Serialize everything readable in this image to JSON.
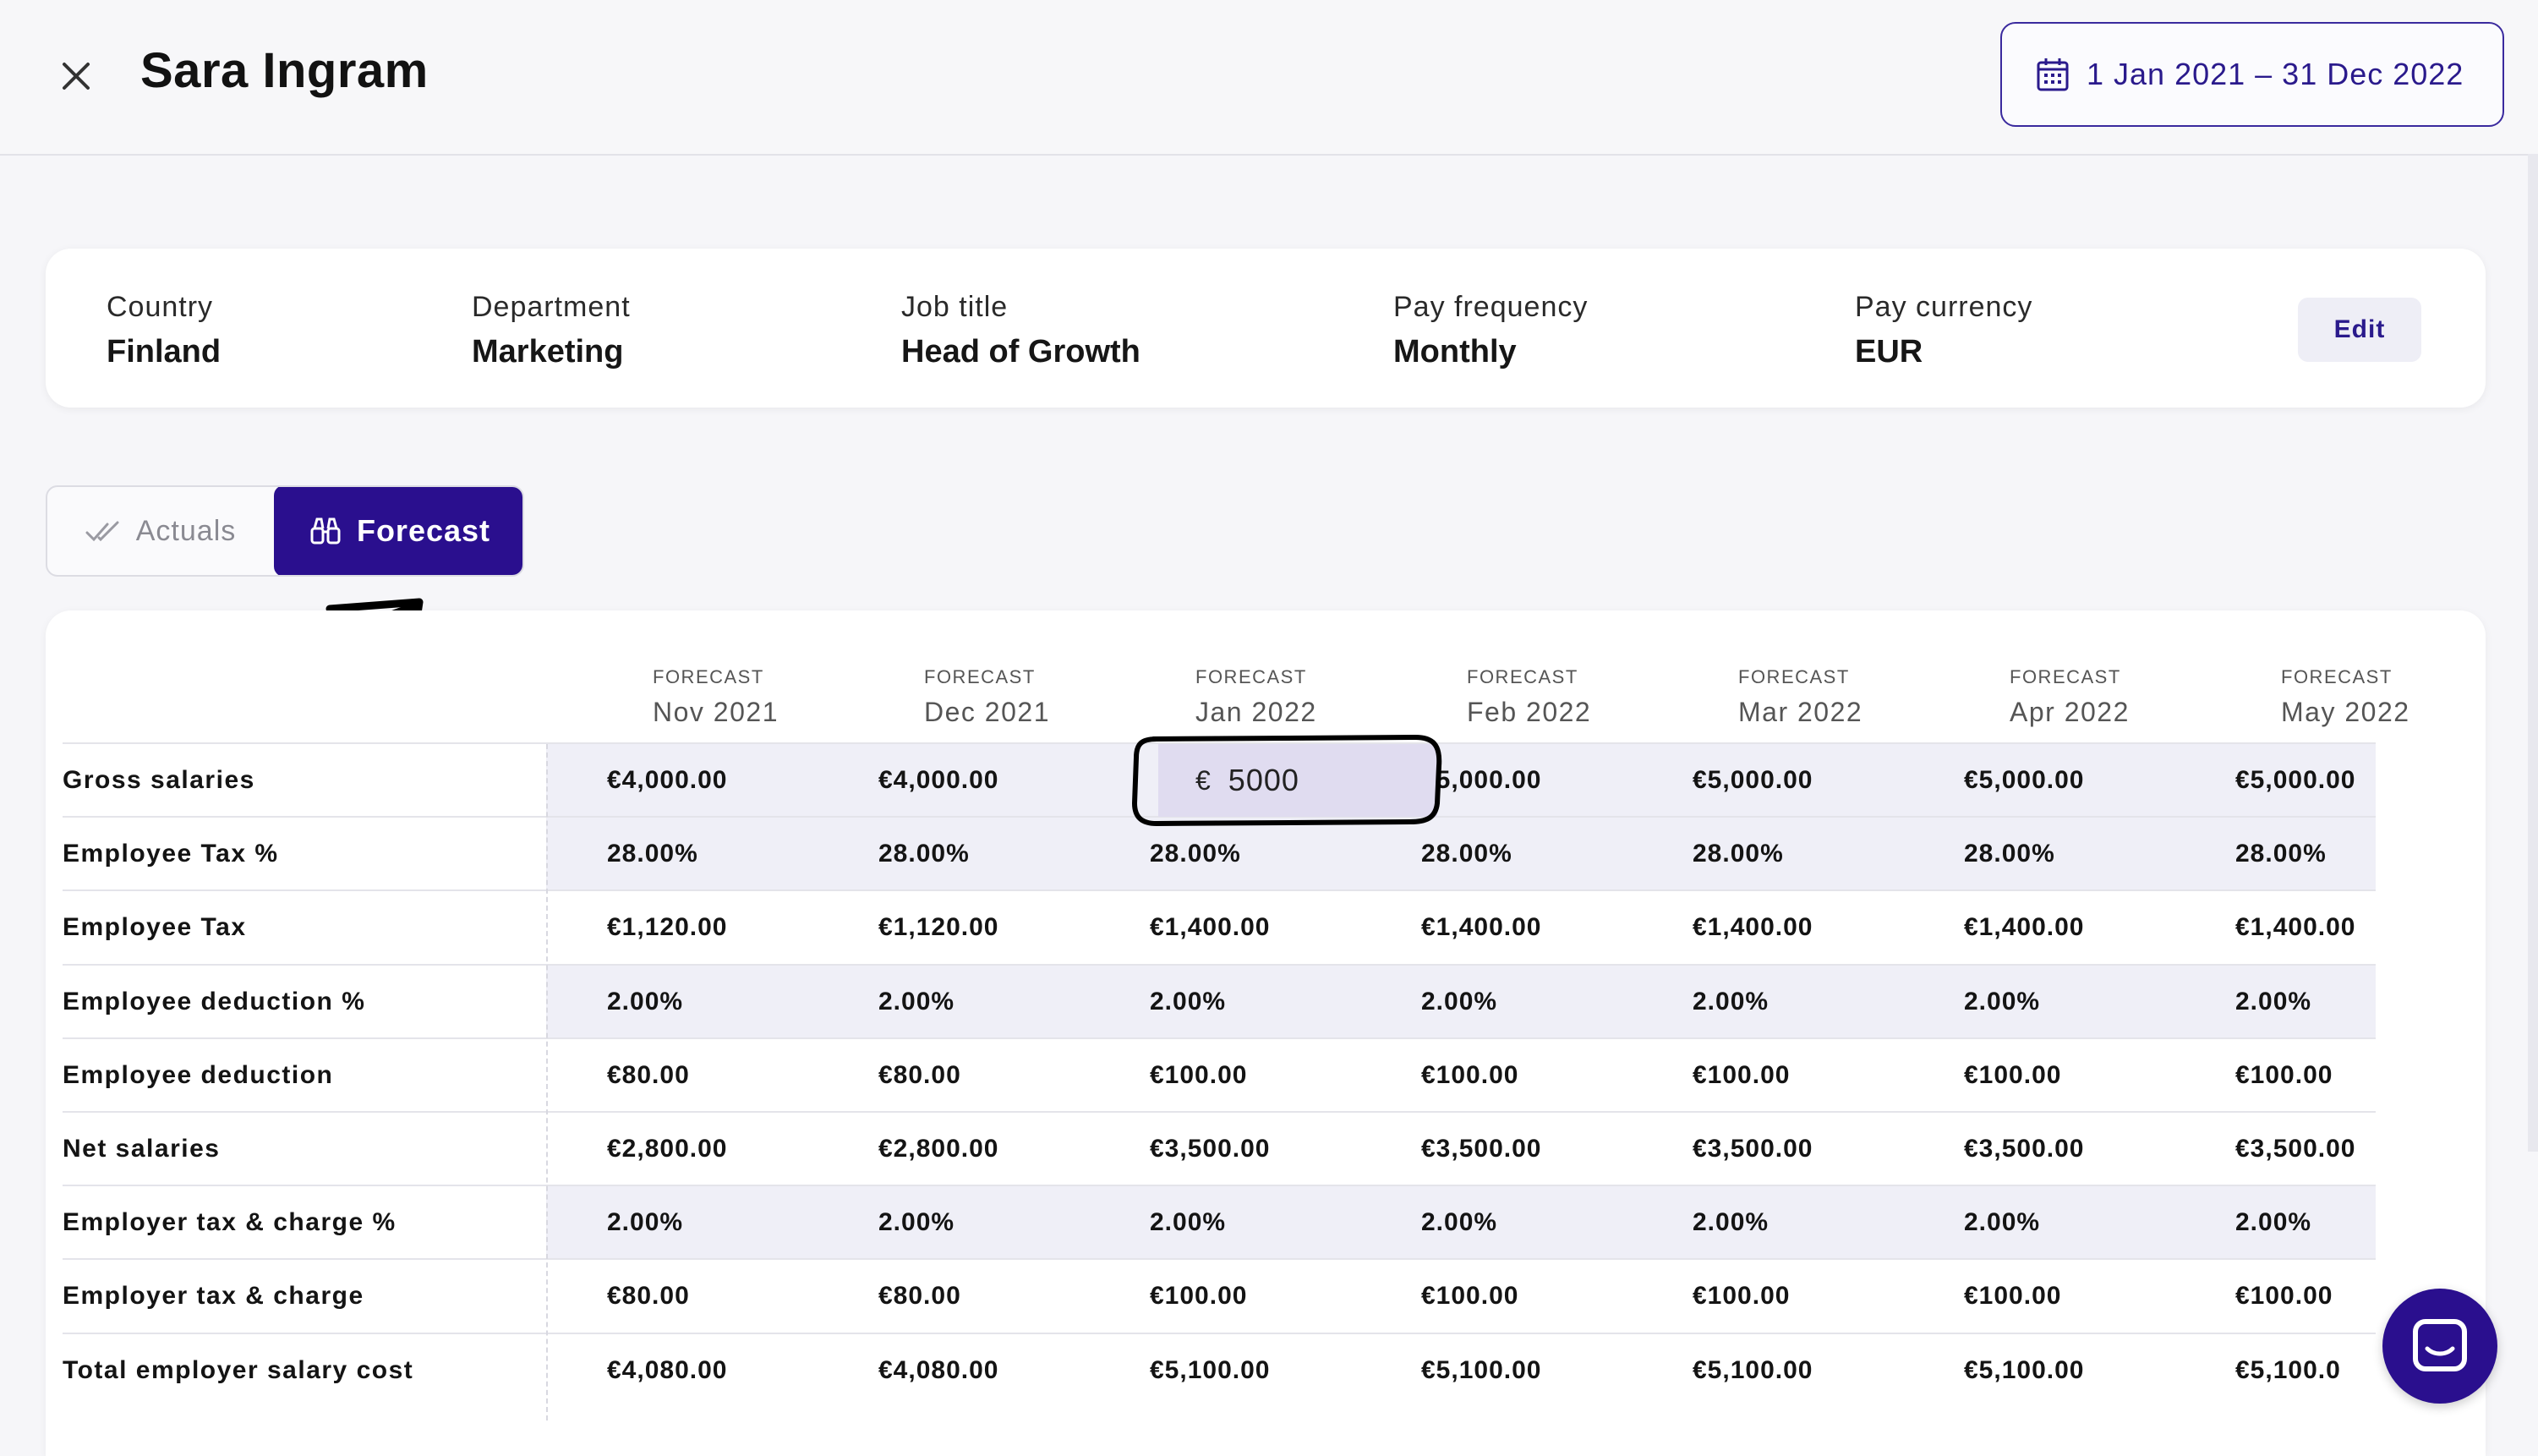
{
  "header": {
    "title": "Sara Ingram",
    "date_range": "1 Jan 2021 – 31 Dec 2022"
  },
  "info": {
    "country_label": "Country",
    "country": "Finland",
    "department_label": "Department",
    "department": "Marketing",
    "job_title_label": "Job title",
    "job_title": "Head of Growth",
    "pay_frequency_label": "Pay frequency",
    "pay_frequency": "Monthly",
    "pay_currency_label": "Pay currency",
    "pay_currency": "EUR",
    "edit_label": "Edit"
  },
  "toggle": {
    "actuals": "Actuals",
    "forecast": "Forecast",
    "selected": "Forecast"
  },
  "table": {
    "column_kicker": "FORECAST",
    "months": [
      "Nov 2021",
      "Dec 2021",
      "Jan 2022",
      "Feb 2022",
      "Mar 2022",
      "Apr 2022",
      "May 2022"
    ],
    "rows": [
      {
        "label": "Gross salaries",
        "values": [
          "€4,000.00",
          "€4,000.00",
          "",
          "€5,000.00",
          "€5,000.00",
          "€5,000.00",
          "€5,000.00"
        ]
      },
      {
        "label": "Employee Tax %",
        "values": [
          "28.00%",
          "28.00%",
          "28.00%",
          "28.00%",
          "28.00%",
          "28.00%",
          "28.00%"
        ]
      },
      {
        "label": "Employee Tax",
        "values": [
          "€1,120.00",
          "€1,120.00",
          "€1,400.00",
          "€1,400.00",
          "€1,400.00",
          "€1,400.00",
          "€1,400.00"
        ]
      },
      {
        "label": "Employee deduction %",
        "values": [
          "2.00%",
          "2.00%",
          "2.00%",
          "2.00%",
          "2.00%",
          "2.00%",
          "2.00%"
        ]
      },
      {
        "label": "Employee deduction",
        "values": [
          "€80.00",
          "€80.00",
          "€100.00",
          "€100.00",
          "€100.00",
          "€100.00",
          "€100.00"
        ]
      },
      {
        "label": "Net salaries",
        "values": [
          "€2,800.00",
          "€2,800.00",
          "€3,500.00",
          "€3,500.00",
          "€3,500.00",
          "€3,500.00",
          "€3,500.00"
        ]
      },
      {
        "label": "Employer tax & charge %",
        "values": [
          "2.00%",
          "2.00%",
          "2.00%",
          "2.00%",
          "2.00%",
          "2.00%",
          "2.00%"
        ]
      },
      {
        "label": "Employer tax & charge",
        "values": [
          "€80.00",
          "€80.00",
          "€100.00",
          "€100.00",
          "€100.00",
          "€100.00",
          "€100.00"
        ]
      },
      {
        "label": "Total employer salary cost",
        "values": [
          "€4,080.00",
          "€4,080.00",
          "€5,100.00",
          "€5,100.00",
          "€5,100.00",
          "€5,100.00",
          "€5,100.0"
        ]
      }
    ],
    "editing_cell": {
      "currency": "€",
      "value": "5000"
    }
  },
  "colors": {
    "brand": "#2a0f8e",
    "accent_text": "#2a1a8c",
    "row_shade": "#efeff7"
  },
  "icons": [
    "close-icon",
    "calendar-icon",
    "double-check-icon",
    "binoculars-icon",
    "chat-icon"
  ]
}
